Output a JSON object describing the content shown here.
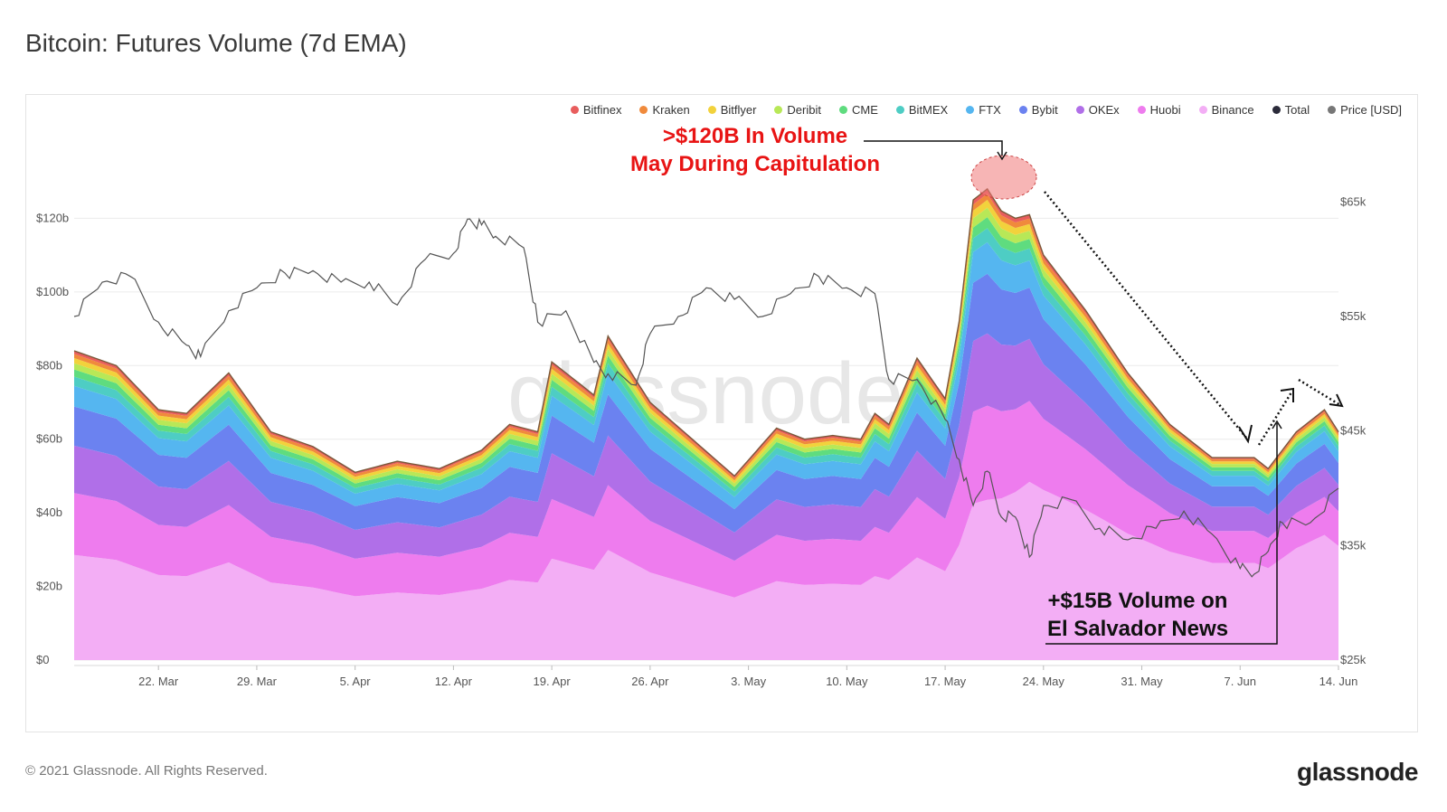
{
  "page": {
    "title": "Bitcoin: Futures Volume (7d EMA)",
    "copyright": "© 2021 Glassnode. All Rights Reserved.",
    "brand": "glassnode",
    "watermark": "glassnode"
  },
  "chart_data": {
    "type": "area",
    "stacked": true,
    "title": "Bitcoin: Futures Volume (7d EMA)",
    "x_tick_labels": [
      "22. Mar",
      "29. Mar",
      "5. Apr",
      "12. Apr",
      "19. Apr",
      "26. Apr",
      "3. May",
      "10. May",
      "17. May",
      "24. May",
      "31. May",
      "7. Jun",
      "14. Jun"
    ],
    "x_range": [
      "2021-03-16",
      "2021-06-14"
    ],
    "y_left": {
      "ticks": [
        "$0",
        "$20b",
        "$40b",
        "$60b",
        "$80b",
        "$100b",
        "$120b"
      ],
      "range": [
        0,
        140
      ]
    },
    "y_right": {
      "ticks": [
        "$25k",
        "$35k",
        "$45k",
        "$55k",
        "$65k"
      ],
      "range": [
        25000,
        70000
      ],
      "label": "Price [USD]"
    },
    "grid": true,
    "legend_position": "top-right",
    "legend": [
      {
        "name": "Bitfinex",
        "color": "#e85d5d"
      },
      {
        "name": "Kraken",
        "color": "#f08a3c"
      },
      {
        "name": "Bitflyer",
        "color": "#f2d23c"
      },
      {
        "name": "Deribit",
        "color": "#b8e857"
      },
      {
        "name": "CME",
        "color": "#5fdc7f"
      },
      {
        "name": "BitMEX",
        "color": "#4ecdc4"
      },
      {
        "name": "FTX",
        "color": "#55b6f0"
      },
      {
        "name": "Bybit",
        "color": "#6b82f0"
      },
      {
        "name": "OKEx",
        "color": "#b06fe8"
      },
      {
        "name": "Huobi",
        "color": "#ee7cee"
      },
      {
        "name": "Binance",
        "color": "#f3aef5"
      },
      {
        "name": "Total",
        "color": "#2b2b3a"
      },
      {
        "name": "Price [USD]",
        "color": "#777777"
      }
    ],
    "total_volume_b": {
      "dates": [
        "2021-03-16",
        "2021-03-19",
        "2021-03-22",
        "2021-03-24",
        "2021-03-27",
        "2021-03-30",
        "2021-04-02",
        "2021-04-05",
        "2021-04-08",
        "2021-04-11",
        "2021-04-14",
        "2021-04-16",
        "2021-04-18",
        "2021-04-19",
        "2021-04-22",
        "2021-04-23",
        "2021-04-26",
        "2021-04-29",
        "2021-05-02",
        "2021-05-05",
        "2021-05-07",
        "2021-05-09",
        "2021-05-11",
        "2021-05-12",
        "2021-05-13",
        "2021-05-15",
        "2021-05-17",
        "2021-05-18",
        "2021-05-19",
        "2021-05-20",
        "2021-05-21",
        "2021-05-22",
        "2021-05-23",
        "2021-05-24",
        "2021-05-27",
        "2021-05-30",
        "2021-06-02",
        "2021-06-05",
        "2021-06-08",
        "2021-06-09",
        "2021-06-11",
        "2021-06-13",
        "2021-06-14"
      ],
      "values": [
        84,
        80,
        68,
        67,
        78,
        62,
        58,
        51,
        54,
        52,
        57,
        64,
        62,
        81,
        72,
        88,
        70,
        60,
        50,
        63,
        60,
        61,
        60,
        67,
        64,
        82,
        71,
        92,
        125,
        128,
        122,
        120,
        121,
        110,
        95,
        78,
        64,
        55,
        55,
        52,
        62,
        68,
        62
      ]
    },
    "binance_share_of_total": [
      0.34,
      0.34,
      0.34,
      0.34,
      0.34,
      0.34,
      0.34,
      0.34,
      0.34,
      0.34,
      0.34,
      0.34,
      0.34,
      0.34,
      0.34,
      0.34,
      0.34,
      0.34,
      0.34,
      0.34,
      0.34,
      0.34,
      0.34,
      0.34,
      0.34,
      0.34,
      0.34,
      0.34,
      0.34,
      0.34,
      0.36,
      0.38,
      0.4,
      0.42,
      0.43,
      0.44,
      0.46,
      0.48,
      0.48,
      0.48,
      0.49,
      0.5,
      0.5
    ],
    "layer_fractions_of_rest": [
      0.3,
      0.23,
      0.19,
      0.1,
      0.045,
      0.035,
      0.03,
      0.025,
      0.02,
      0.015,
      0.01
    ],
    "price_usd": {
      "dates": [
        "2021-03-16",
        "2021-03-18",
        "2021-03-20",
        "2021-03-22",
        "2021-03-24",
        "2021-03-25",
        "2021-03-27",
        "2021-03-29",
        "2021-03-31",
        "2021-04-02",
        "2021-04-04",
        "2021-04-06",
        "2021-04-08",
        "2021-04-10",
        "2021-04-12",
        "2021-04-13",
        "2021-04-14",
        "2021-04-15",
        "2021-04-17",
        "2021-04-18",
        "2021-04-20",
        "2021-04-22",
        "2021-04-23",
        "2021-04-25",
        "2021-04-26",
        "2021-04-28",
        "2021-04-30",
        "2021-05-02",
        "2021-05-04",
        "2021-05-06",
        "2021-05-08",
        "2021-05-10",
        "2021-05-12",
        "2021-05-13",
        "2021-05-15",
        "2021-05-17",
        "2021-05-18",
        "2021-05-19",
        "2021-05-20",
        "2021-05-21",
        "2021-05-22",
        "2021-05-23",
        "2021-05-24",
        "2021-05-26",
        "2021-05-28",
        "2021-05-30",
        "2021-06-01",
        "2021-06-03",
        "2021-06-05",
        "2021-06-07",
        "2021-06-08",
        "2021-06-09",
        "2021-06-10",
        "2021-06-12",
        "2021-06-14"
      ],
      "values": [
        55000,
        58000,
        58500,
        54500,
        52500,
        51500,
        55500,
        57500,
        58800,
        59000,
        58000,
        58000,
        56000,
        60000,
        60500,
        63500,
        63000,
        62000,
        61000,
        54500,
        55500,
        51000,
        50000,
        49000,
        53500,
        55000,
        57500,
        56500,
        55000,
        57000,
        58500,
        57500,
        57000,
        49500,
        49500,
        46000,
        42500,
        38500,
        41500,
        37500,
        37500,
        34000,
        38500,
        39000,
        36500,
        35500,
        36500,
        38000,
        36000,
        33000,
        32500,
        34500,
        37000,
        37000,
        40000
      ]
    },
    "annotations": [
      {
        "text_line1": ">$120B In Volume",
        "text_line2": "May During Capitulation",
        "color": "#e81414"
      },
      {
        "text_line1": "+$15B Volume on",
        "text_line2": "El Salvador News",
        "color": "#111111"
      }
    ]
  }
}
